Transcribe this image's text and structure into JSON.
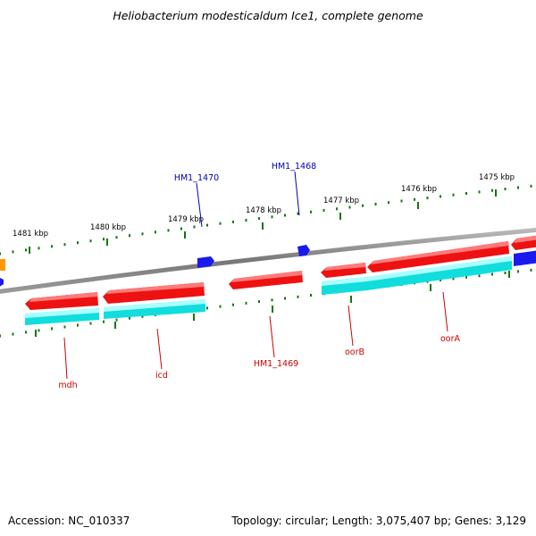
{
  "title": "Heliobacterium modesticaldum Ice1, complete genome",
  "footer": {
    "accession": "Accession: NC_010337",
    "summary": "Topology: circular; Length: 3,075,407 bp; Genes: 3,129"
  },
  "colors": {
    "forward_cds": "#ee1111",
    "forward_cds_light": "#ff7a7a",
    "rna": "#11dddd",
    "rna_light": "#aaffff",
    "small_feature": "#1a1aee",
    "other_feature": "#ff9900",
    "backbone": "#888888",
    "tick": "#117711",
    "label_red": "#cc0000",
    "label_blue": "#0000aa"
  },
  "tick_labels": [
    "1481 kbp",
    "1480 kbp",
    "1479 kbp",
    "1478 kbp",
    "1477 kbp",
    "1476 kbp",
    "1475 kbp"
  ],
  "gene_labels": [
    {
      "text": "mdh",
      "color": "red"
    },
    {
      "text": "icd",
      "color": "red"
    },
    {
      "text": "HM1_1469",
      "color": "red"
    },
    {
      "text": "oorB",
      "color": "red"
    },
    {
      "text": "oorA",
      "color": "red"
    },
    {
      "text": "HM1_1470",
      "color": "blue"
    },
    {
      "text": "HM1_1468",
      "color": "blue"
    }
  ]
}
